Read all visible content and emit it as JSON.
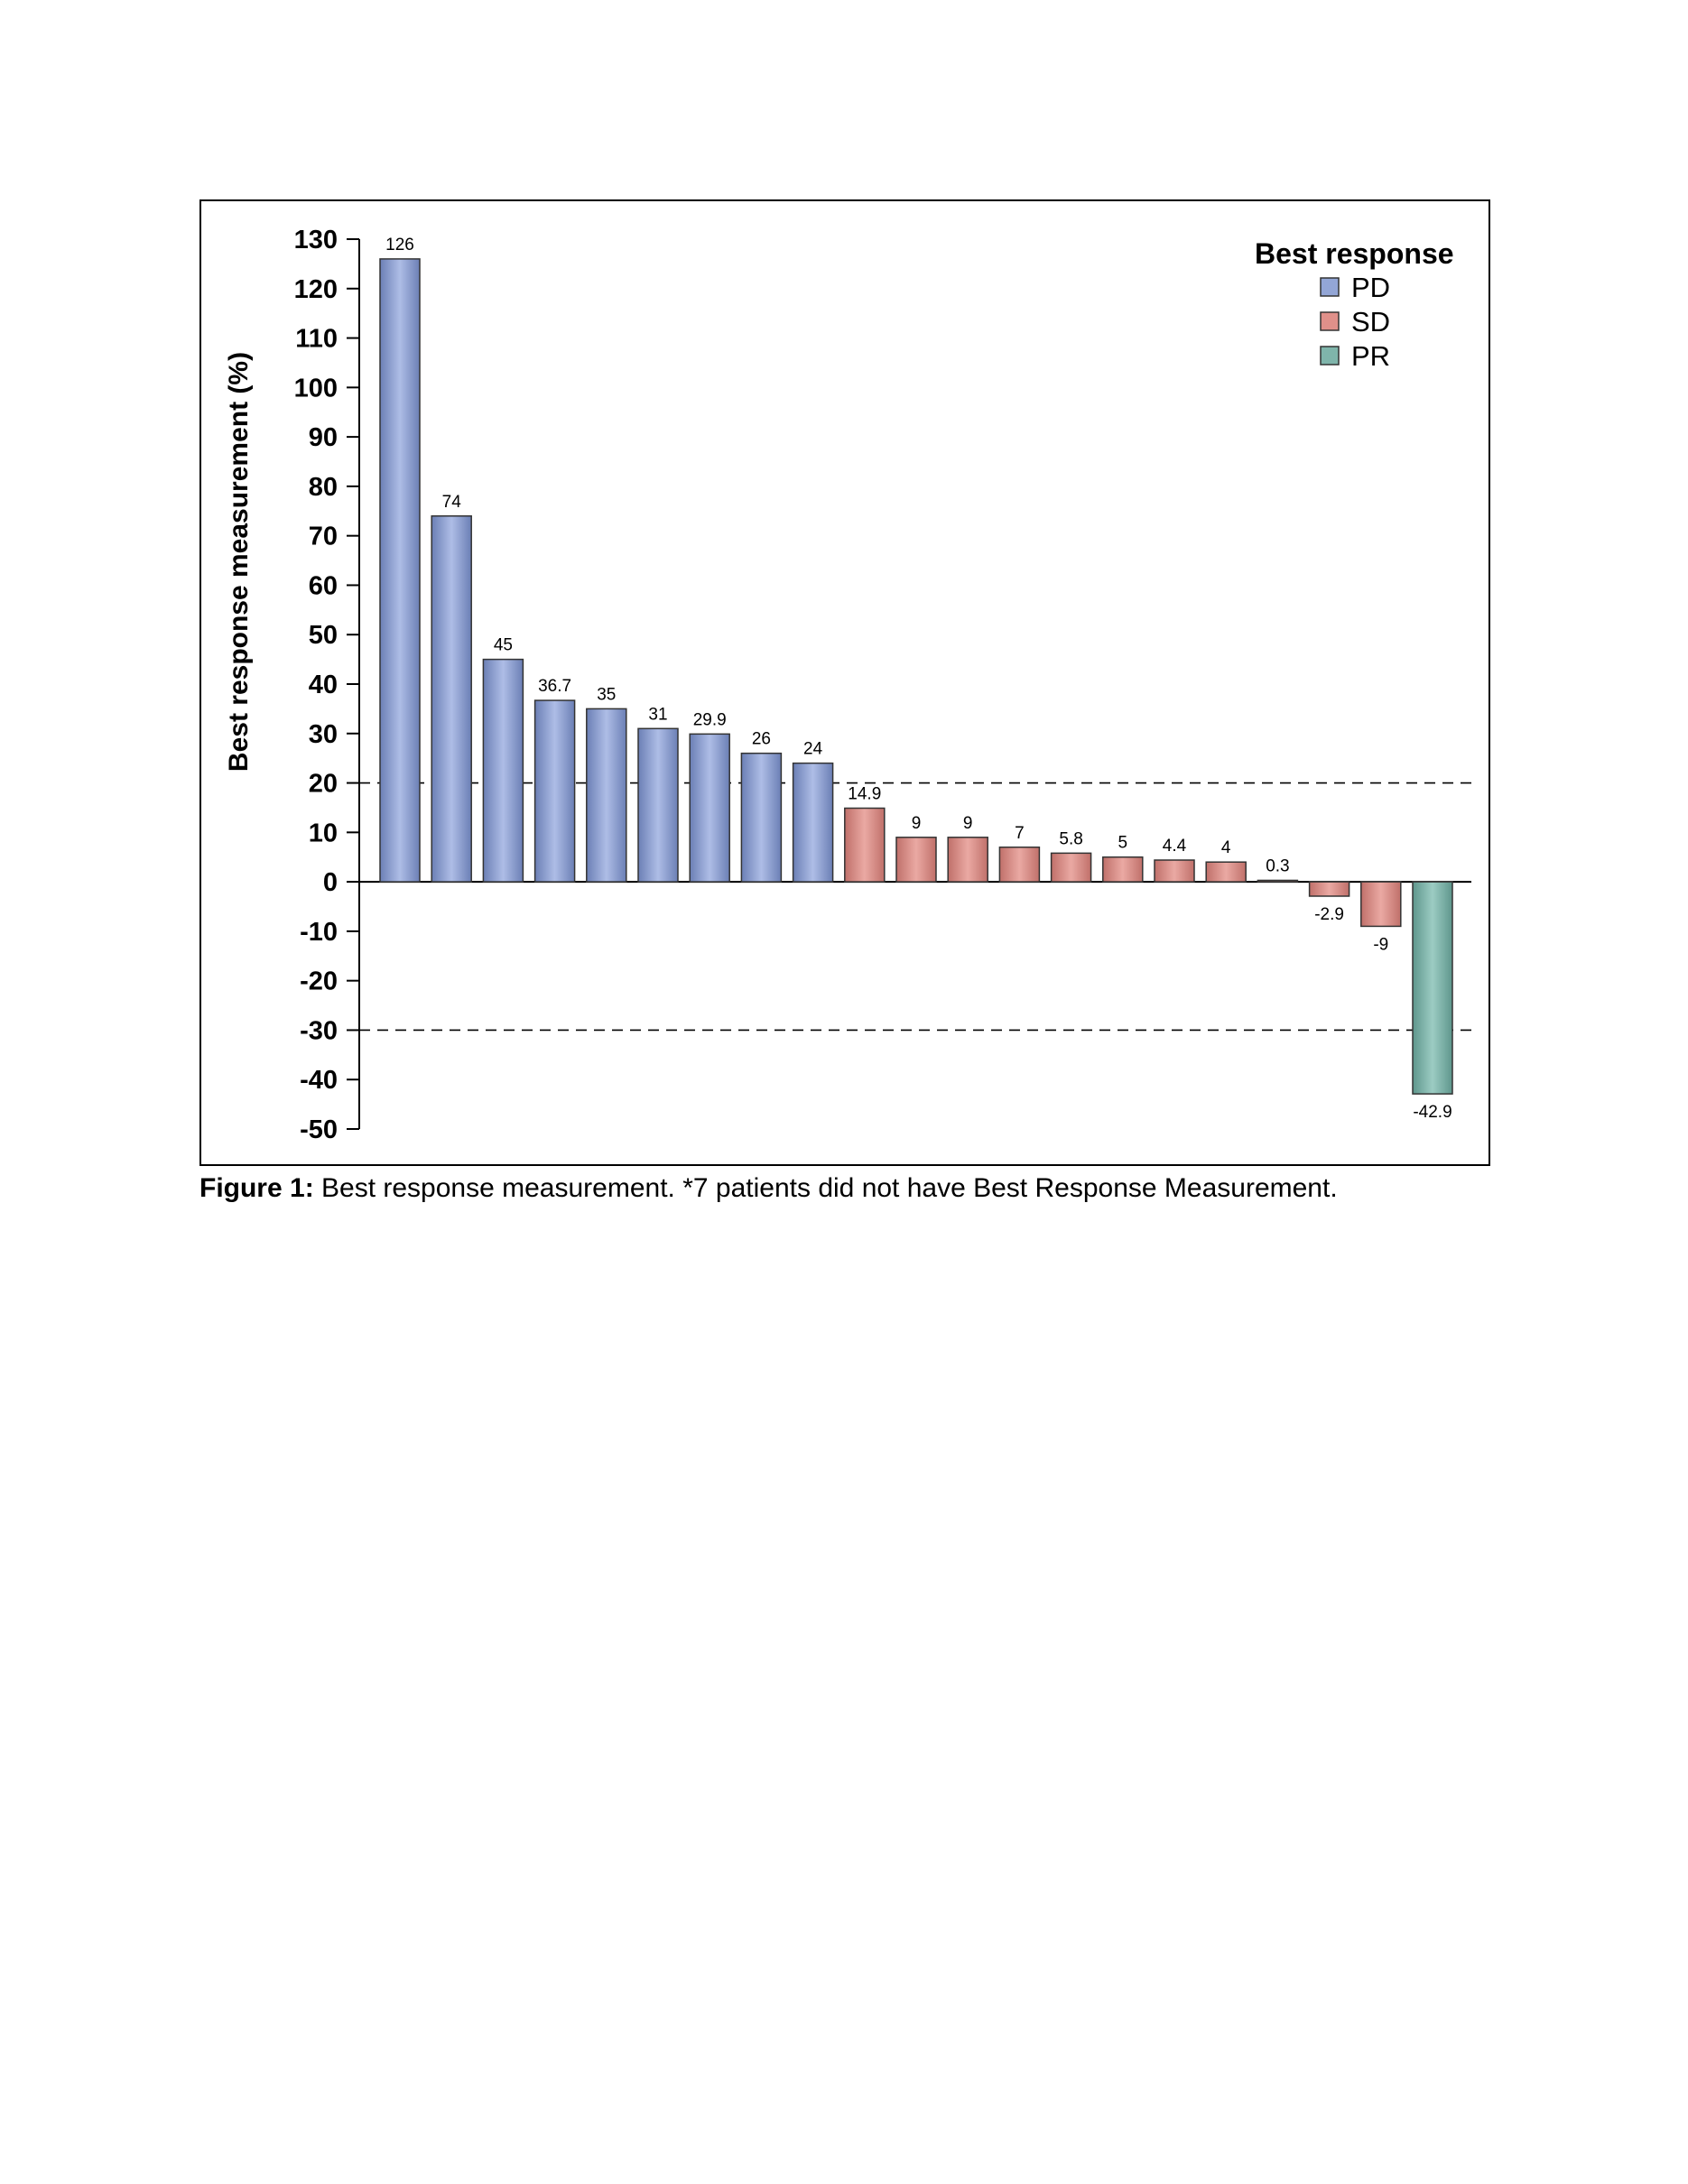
{
  "chart_data": {
    "type": "bar",
    "ylabel": "Best response measurement (%)",
    "ylim": [
      -50,
      130
    ],
    "yticks": [
      130,
      120,
      110,
      100,
      90,
      80,
      70,
      60,
      50,
      40,
      30,
      20,
      10,
      0,
      -10,
      -20,
      -30,
      -40,
      -50
    ],
    "reference_lines": [
      20,
      -30
    ],
    "legend": {
      "title": "Best response",
      "placement": "top-right",
      "entries": [
        {
          "label": "PD",
          "color": "#93a6d6"
        },
        {
          "label": "SD",
          "color": "#e0908a"
        },
        {
          "label": "PR",
          "color": "#7fb5ab"
        }
      ]
    },
    "bars": [
      {
        "value": 126,
        "label": "126",
        "group": "PD"
      },
      {
        "value": 74,
        "label": "74",
        "group": "PD"
      },
      {
        "value": 45,
        "label": "45",
        "group": "PD"
      },
      {
        "value": 36.7,
        "label": "36.7",
        "group": "PD"
      },
      {
        "value": 35,
        "label": "35",
        "group": "PD"
      },
      {
        "value": 31,
        "label": "31",
        "group": "PD"
      },
      {
        "value": 29.9,
        "label": "29.9",
        "group": "PD"
      },
      {
        "value": 26,
        "label": "26",
        "group": "PD"
      },
      {
        "value": 24,
        "label": "24",
        "group": "PD"
      },
      {
        "value": 14.9,
        "label": "14.9",
        "group": "SD"
      },
      {
        "value": 9,
        "label": "9",
        "group": "SD"
      },
      {
        "value": 9,
        "label": "9",
        "group": "SD"
      },
      {
        "value": 7,
        "label": "7",
        "group": "SD"
      },
      {
        "value": 5.8,
        "label": "5.8",
        "group": "SD"
      },
      {
        "value": 5,
        "label": "5",
        "group": "SD"
      },
      {
        "value": 4.4,
        "label": "4.4",
        "group": "SD"
      },
      {
        "value": 4,
        "label": "4",
        "group": "SD"
      },
      {
        "value": 0.3,
        "label": "0.3",
        "group": "SD"
      },
      {
        "value": -2.9,
        "label": "-2.9",
        "group": "SD"
      },
      {
        "value": -9,
        "label": "-9",
        "group": "SD"
      },
      {
        "value": -42.9,
        "label": "-42.9",
        "group": "PR"
      }
    ]
  },
  "caption": {
    "label": "Figure 1:",
    "text": " Best response measurement. *7 patients did not have Best Response Measurement."
  }
}
